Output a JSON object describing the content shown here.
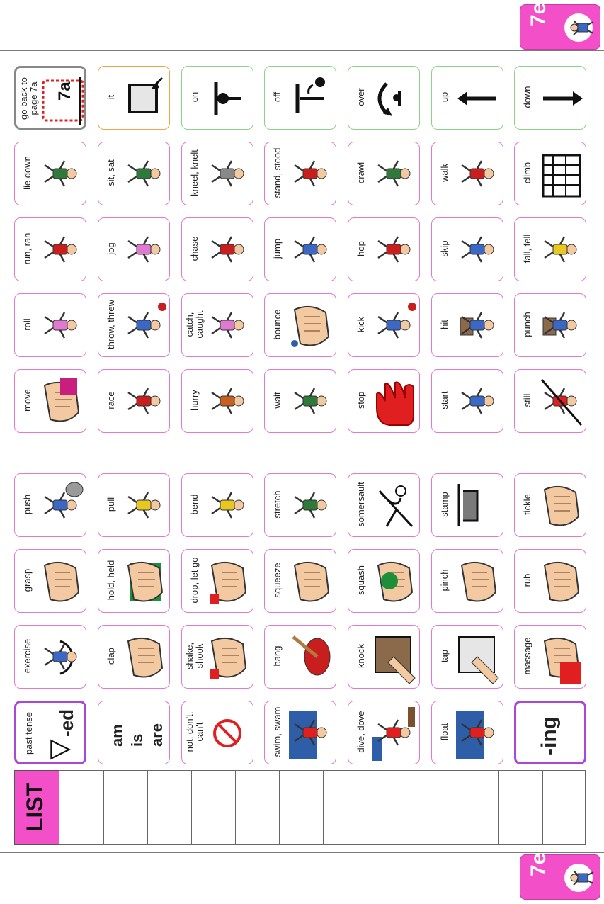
{
  "page": {
    "code": "7e",
    "list_label": "LIST"
  },
  "colors": {
    "tab_pink": "#f24fc8",
    "pink_border": "#e07ad0",
    "green_border": "#8fd08a",
    "orange_border": "#e8a84a",
    "purple_border": "#a948d6",
    "gray_border": "#888888"
  },
  "columns": [
    [
      {
        "label": "go back to\npage 7a",
        "icon": "go-back-7a-icon",
        "border": "gray",
        "tag": "7a"
      },
      {
        "label": "lie down",
        "icon": "lie-down-icon",
        "border": "pink"
      },
      {
        "label": "run,   ran",
        "icon": "run-icon",
        "border": "pink"
      },
      {
        "label": "roll",
        "icon": "roll-icon",
        "border": "pink"
      },
      {
        "label": "move",
        "icon": "move-icon",
        "border": "pink"
      },
      {
        "label": "push",
        "icon": "push-icon",
        "border": "pink"
      },
      {
        "label": "grasp",
        "icon": "grasp-icon",
        "border": "pink"
      },
      {
        "label": "exercise",
        "icon": "exercise-icon",
        "border": "pink"
      },
      {
        "label": "past tense",
        "icon": "past-tense-icon",
        "border": "purple",
        "big": "-ed"
      }
    ],
    [
      {
        "label": "it",
        "icon": "it-icon",
        "border": "orange"
      },
      {
        "label": "sit, sat",
        "icon": "sit-icon",
        "border": "pink"
      },
      {
        "label": "jog",
        "icon": "jog-icon",
        "border": "pink"
      },
      {
        "label": "throw, threw",
        "icon": "throw-icon",
        "border": "pink"
      },
      {
        "label": "race",
        "icon": "race-icon",
        "border": "pink"
      },
      {
        "label": "pull",
        "icon": "pull-icon",
        "border": "pink"
      },
      {
        "label": "hold, held",
        "icon": "hold-icon",
        "border": "pink"
      },
      {
        "label": "clap",
        "icon": "clap-icon",
        "border": "pink"
      },
      {
        "label": "",
        "icon": "am-is-are-icon",
        "border": "pink",
        "words": [
          "am",
          "is",
          "are"
        ]
      }
    ],
    [
      {
        "label": "on",
        "icon": "on-icon",
        "border": "green"
      },
      {
        "label": "kneel,  knelt",
        "icon": "kneel-icon",
        "border": "pink"
      },
      {
        "label": "chase",
        "icon": "chase-icon",
        "border": "pink"
      },
      {
        "label": "catch,\ncaught",
        "icon": "catch-icon",
        "border": "pink"
      },
      {
        "label": "hurry",
        "icon": "hurry-icon",
        "border": "pink"
      },
      {
        "label": "bend",
        "icon": "bend-icon",
        "border": "pink"
      },
      {
        "label": "drop, let go",
        "icon": "drop-icon",
        "border": "pink"
      },
      {
        "label": "shake,\nshook",
        "icon": "shake-icon",
        "border": "pink"
      },
      {
        "label": "not, don't,\ncan't",
        "icon": "not-icon",
        "border": "pink"
      }
    ],
    [
      {
        "label": "off",
        "icon": "off-icon",
        "border": "green"
      },
      {
        "label": "stand, stood",
        "icon": "stand-icon",
        "border": "pink"
      },
      {
        "label": "jump",
        "icon": "jump-icon",
        "border": "pink"
      },
      {
        "label": "bounce",
        "icon": "bounce-icon",
        "border": "pink"
      },
      {
        "label": "wait",
        "icon": "wait-icon",
        "border": "pink"
      },
      {
        "label": "stretch",
        "icon": "stretch-icon",
        "border": "pink"
      },
      {
        "label": "squeeze",
        "icon": "squeeze-icon",
        "border": "pink"
      },
      {
        "label": "bang",
        "icon": "bang-icon",
        "border": "pink"
      },
      {
        "label": "swim, swam",
        "icon": "swim-icon",
        "border": "pink"
      }
    ],
    [
      {
        "label": "over",
        "icon": "over-icon",
        "border": "green"
      },
      {
        "label": "crawl",
        "icon": "crawl-icon",
        "border": "pink"
      },
      {
        "label": "hop",
        "icon": "hop-icon",
        "border": "pink"
      },
      {
        "label": "kick",
        "icon": "kick-icon",
        "border": "pink"
      },
      {
        "label": "stop",
        "icon": "stop-icon",
        "border": "pink"
      },
      {
        "label": "somersault",
        "icon": "somersault-icon",
        "border": "pink"
      },
      {
        "label": "squash",
        "icon": "squash-icon",
        "border": "pink"
      },
      {
        "label": "knock",
        "icon": "knock-icon",
        "border": "pink"
      },
      {
        "label": "dive, dove",
        "icon": "dive-icon",
        "border": "pink"
      }
    ],
    [
      {
        "label": "up",
        "icon": "up-arrow-icon",
        "border": "green"
      },
      {
        "label": "walk",
        "icon": "walk-icon",
        "border": "pink"
      },
      {
        "label": "skip",
        "icon": "skip-icon",
        "border": "pink"
      },
      {
        "label": "hit",
        "icon": "hit-icon",
        "border": "pink"
      },
      {
        "label": "start",
        "icon": "start-icon",
        "border": "pink"
      },
      {
        "label": "stamp",
        "icon": "stamp-icon",
        "border": "pink"
      },
      {
        "label": "pinch",
        "icon": "pinch-icon",
        "border": "pink"
      },
      {
        "label": "tap",
        "icon": "tap-icon",
        "border": "pink"
      },
      {
        "label": "float",
        "icon": "float-icon",
        "border": "pink"
      }
    ],
    [
      {
        "label": "down",
        "icon": "down-arrow-icon",
        "border": "green"
      },
      {
        "label": "climb",
        "icon": "climb-icon",
        "border": "pink"
      },
      {
        "label": "fall, fell",
        "icon": "fall-icon",
        "border": "pink"
      },
      {
        "label": "punch",
        "icon": "punch-icon",
        "border": "pink"
      },
      {
        "label": "still",
        "icon": "still-icon",
        "border": "pink"
      },
      {
        "label": "tickle",
        "icon": "tickle-icon",
        "border": "pink"
      },
      {
        "label": "rub",
        "icon": "rub-icon",
        "border": "pink"
      },
      {
        "label": "massage",
        "icon": "massage-icon",
        "border": "pink"
      },
      {
        "label": "",
        "icon": "ing-icon",
        "border": "purple",
        "big": "-ing"
      }
    ]
  ]
}
